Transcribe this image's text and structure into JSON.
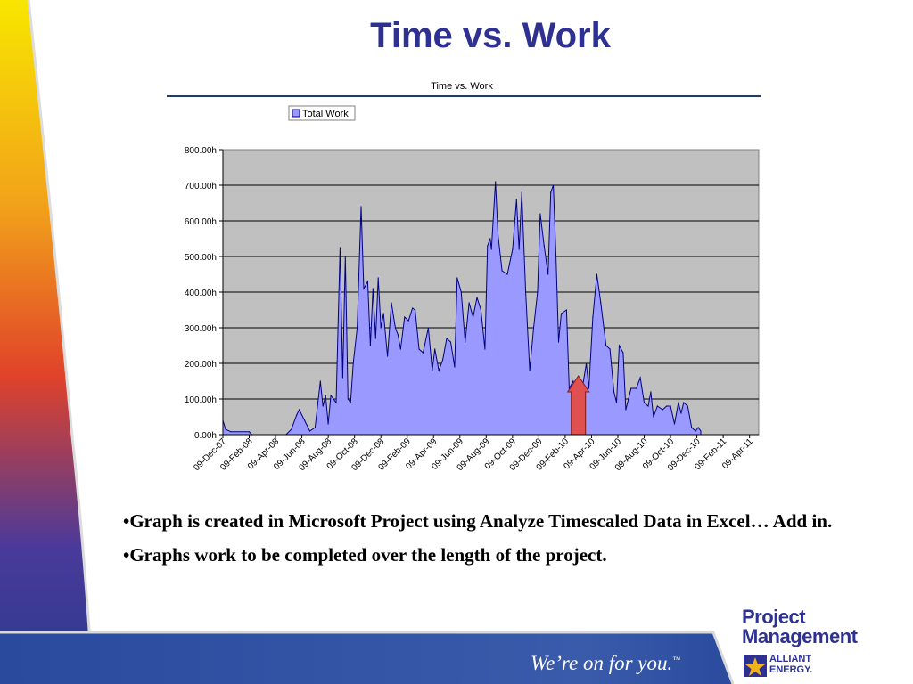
{
  "slide": {
    "title": "Time vs. Work",
    "bullets": [
      "•Graph is created in Microsoft Project using Analyze Timescaled Data in Excel… Add in.",
      "•Graphs work to be completed over the length of the project."
    ],
    "tagline": "We’re on for you.",
    "tagline_mark": "™",
    "logo": {
      "line1": "Project",
      "line2": "Management",
      "brand_line1": "ALLIANT",
      "brand_line2": "ENERGY."
    }
  },
  "colors": {
    "title": "#2e3192",
    "plot_bg": "#c0c0c0",
    "area_fill": "#9999ff",
    "area_stroke": "#000080",
    "arrow": "#e05050",
    "tagline": "#ffffff"
  },
  "chart_data": {
    "type": "area",
    "title": "Time vs. Work",
    "legend": [
      "Total Work"
    ],
    "legend_position": "top-left",
    "grid": true,
    "ylim": [
      0,
      800
    ],
    "y_ticks": [
      "0.00h",
      "100.00h",
      "200.00h",
      "300.00h",
      "400.00h",
      "500.00h",
      "600.00h",
      "700.00h",
      "800.00h"
    ],
    "x_tick_labels": [
      "09-Dec-07",
      "09-Feb-08",
      "09-Apr-08",
      "09-Jun-08",
      "09-Aug-08",
      "09-Oct-08",
      "09-Dec-08",
      "09-Feb-09",
      "09-Apr-09",
      "09-Jun-09",
      "09-Aug-09",
      "09-Oct-09",
      "09-Dec-09",
      "09-Feb-10",
      "09-Apr-10",
      "09-Jun-10",
      "09-Aug-10",
      "09-Oct-10",
      "09-Dec-10",
      "09-Feb-11",
      "09-Apr-11"
    ],
    "series": [
      {
        "name": "Total Work",
        "points": [
          [
            0,
            40
          ],
          [
            0.1,
            15
          ],
          [
            0.3,
            8
          ],
          [
            1,
            8
          ],
          [
            1.1,
            0
          ],
          [
            2,
            0
          ],
          [
            2.4,
            0
          ],
          [
            2.6,
            15
          ],
          [
            2.8,
            55
          ],
          [
            2.9,
            70
          ],
          [
            3.1,
            40
          ],
          [
            3.3,
            10
          ],
          [
            3.5,
            20
          ],
          [
            3.7,
            150
          ],
          [
            3.8,
            80
          ],
          [
            3.9,
            110
          ],
          [
            4,
            30
          ],
          [
            4.1,
            110
          ],
          [
            4.3,
            90
          ],
          [
            4.45,
            525
          ],
          [
            4.55,
            160
          ],
          [
            4.65,
            500
          ],
          [
            4.75,
            100
          ],
          [
            4.85,
            90
          ],
          [
            4.95,
            200
          ],
          [
            5.1,
            300
          ],
          [
            5.25,
            640
          ],
          [
            5.35,
            410
          ],
          [
            5.5,
            430
          ],
          [
            5.6,
            250
          ],
          [
            5.7,
            410
          ],
          [
            5.8,
            270
          ],
          [
            5.9,
            440
          ],
          [
            6,
            300
          ],
          [
            6.1,
            340
          ],
          [
            6.25,
            220
          ],
          [
            6.4,
            370
          ],
          [
            6.55,
            300
          ],
          [
            6.65,
            280
          ],
          [
            6.75,
            240
          ],
          [
            6.9,
            330
          ],
          [
            7.05,
            320
          ],
          [
            7.2,
            355
          ],
          [
            7.3,
            350
          ],
          [
            7.45,
            240
          ],
          [
            7.6,
            230
          ],
          [
            7.8,
            300
          ],
          [
            7.95,
            180
          ],
          [
            8.05,
            240
          ],
          [
            8.2,
            180
          ],
          [
            8.35,
            210
          ],
          [
            8.5,
            270
          ],
          [
            8.65,
            260
          ],
          [
            8.8,
            190
          ],
          [
            8.9,
            440
          ],
          [
            9.05,
            400
          ],
          [
            9.2,
            260
          ],
          [
            9.35,
            370
          ],
          [
            9.5,
            330
          ],
          [
            9.65,
            385
          ],
          [
            9.8,
            350
          ],
          [
            9.95,
            240
          ],
          [
            10.05,
            530
          ],
          [
            10.15,
            550
          ],
          [
            10.2,
            520
          ],
          [
            10.35,
            710
          ],
          [
            10.45,
            560
          ],
          [
            10.6,
            460
          ],
          [
            10.8,
            450
          ],
          [
            11,
            520
          ],
          [
            11.15,
            660
          ],
          [
            11.25,
            520
          ],
          [
            11.35,
            680
          ],
          [
            11.5,
            400
          ],
          [
            11.65,
            180
          ],
          [
            11.8,
            300
          ],
          [
            11.95,
            400
          ],
          [
            12.05,
            620
          ],
          [
            12.2,
            530
          ],
          [
            12.35,
            450
          ],
          [
            12.45,
            680
          ],
          [
            12.55,
            700
          ],
          [
            12.65,
            500
          ],
          [
            12.75,
            260
          ],
          [
            12.85,
            340
          ],
          [
            13.05,
            350
          ],
          [
            13.15,
            130
          ],
          [
            13.3,
            150
          ],
          [
            13.4,
            120
          ],
          [
            13.5,
            150
          ],
          [
            13.65,
            130
          ],
          [
            13.8,
            200
          ],
          [
            13.9,
            130
          ],
          [
            14.05,
            330
          ],
          [
            14.2,
            450
          ],
          [
            14.35,
            370
          ],
          [
            14.55,
            250
          ],
          [
            14.7,
            240
          ],
          [
            14.85,
            120
          ],
          [
            14.95,
            90
          ],
          [
            15.05,
            250
          ],
          [
            15.2,
            230
          ],
          [
            15.3,
            70
          ],
          [
            15.5,
            130
          ],
          [
            15.7,
            130
          ],
          [
            15.85,
            160
          ],
          [
            16,
            90
          ],
          [
            16.15,
            80
          ],
          [
            16.25,
            120
          ],
          [
            16.35,
            50
          ],
          [
            16.5,
            80
          ],
          [
            16.7,
            70
          ],
          [
            16.85,
            80
          ],
          [
            17,
            80
          ],
          [
            17.15,
            30
          ],
          [
            17.3,
            90
          ],
          [
            17.4,
            60
          ],
          [
            17.5,
            90
          ],
          [
            17.65,
            80
          ],
          [
            17.8,
            20
          ],
          [
            17.95,
            10
          ],
          [
            18.05,
            20
          ],
          [
            18.15,
            10
          ]
        ]
      }
    ],
    "annotations": [
      {
        "type": "arrow",
        "direction": "up",
        "at_x": 13.5,
        "from_y": 0,
        "to_y": 165
      }
    ]
  }
}
